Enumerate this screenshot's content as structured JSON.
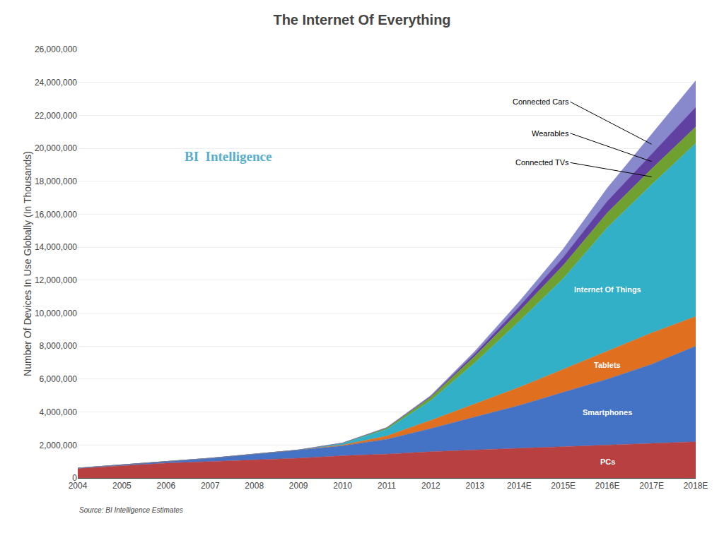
{
  "chart_data": {
    "type": "area",
    "stacked": true,
    "title": "The Internet Of Everything",
    "ylabel": "Number Of Devices In Use Globally (In Thousands)",
    "annotations": [
      "BI  Intelligence",
      "Source: BI Intelligence Estimates"
    ],
    "categories": [
      "2004",
      "2005",
      "2006",
      "2007",
      "2008",
      "2009",
      "2010",
      "2011",
      "2012",
      "2013",
      "2014E",
      "2015E",
      "2016E",
      "2017E",
      "2018E"
    ],
    "series": [
      {
        "name": "PCs",
        "color": "#b94040",
        "values": [
          580000,
          750000,
          900000,
          1000000,
          1100000,
          1200000,
          1350000,
          1450000,
          1600000,
          1700000,
          1800000,
          1900000,
          2000000,
          2100000,
          2200000
        ]
      },
      {
        "name": "Smartphones",
        "color": "#4472c4",
        "values": [
          20000,
          50000,
          100000,
          200000,
          350000,
          500000,
          600000,
          900000,
          1400000,
          2000000,
          2600000,
          3300000,
          4000000,
          4800000,
          5800000
        ]
      },
      {
        "name": "Tablets",
        "color": "#e07020",
        "values": [
          0,
          0,
          0,
          0,
          0,
          0,
          50000,
          200000,
          500000,
          800000,
          1100000,
          1400000,
          1700000,
          1900000,
          1800000
        ]
      },
      {
        "name": "Internet Of Things",
        "color": "#31b0c8",
        "values": [
          0,
          0,
          0,
          0,
          0,
          0,
          100000,
          400000,
          1200000,
          2500000,
          4000000,
          5500000,
          7500000,
          9000000,
          10500000
        ]
      },
      {
        "name": "Connected TVs",
        "color": "#70a030",
        "values": [
          0,
          0,
          0,
          0,
          0,
          0,
          20000,
          80000,
          200000,
          400000,
          600000,
          800000,
          900000,
          950000,
          1000000
        ]
      },
      {
        "name": "Wearables",
        "color": "#6040a0",
        "values": [
          0,
          0,
          0,
          0,
          0,
          0,
          5000,
          20000,
          60000,
          150000,
          300000,
          500000,
          700000,
          900000,
          1200000
        ]
      },
      {
        "name": "Connected Cars",
        "color": "#8888cc",
        "values": [
          0,
          0,
          0,
          0,
          0,
          0,
          5000,
          15000,
          50000,
          150000,
          300000,
          500000,
          800000,
          1200000,
          1600000
        ]
      }
    ],
    "ylim": [
      0,
      26000000
    ],
    "yticks": [
      0,
      {
        "value": 2000000,
        "label": "2,000,000"
      },
      {
        "value": 4000000,
        "label": "4,000,000"
      },
      {
        "value": 6000000,
        "label": "6,000,000"
      },
      {
        "value": 8000000,
        "label": "8,000,000"
      },
      {
        "value": 10000000,
        "label": "10,000,000"
      },
      {
        "value": 12000000,
        "label": "12,000,000"
      },
      {
        "value": 14000000,
        "label": "14,000,000"
      },
      {
        "value": 16000000,
        "label": "16,000,000"
      },
      {
        "value": 18000000,
        "label": "18,000,000"
      },
      {
        "value": 20000000,
        "label": "20,000,000"
      },
      {
        "value": 22000000,
        "label": "22,000,000"
      },
      {
        "value": 24000000,
        "label": "24,000,000"
      },
      {
        "value": 26000000,
        "label": "26,000,000"
      }
    ],
    "grid": true
  }
}
